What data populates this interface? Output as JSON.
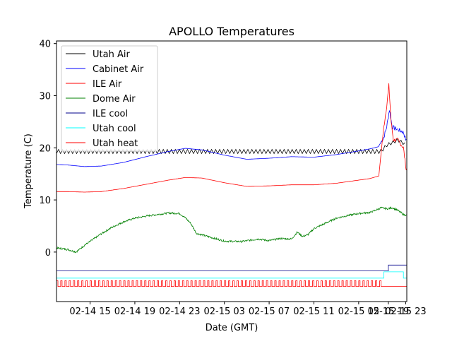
{
  "chart_data": {
    "type": "line",
    "title": "APOLLO Temperatures",
    "xlabel": "Date (GMT)",
    "ylabel": "Temperature (C)",
    "xlim": [
      0,
      62.6
    ],
    "ylim": [
      -9.5,
      40.5
    ],
    "xtick_values": [
      6,
      14,
      22,
      30,
      38,
      46,
      54,
      62
    ],
    "xtick_labels": [
      "02-14 15",
      "02-14 19",
      "02-14 23",
      "02-15 03",
      "02-15 07",
      "02-15 11",
      "02-15 15",
      "02-15 19",
      "02-15 23"
    ],
    "xtick_labels_note": "labels appear at hours 6,14,22,30,38,46,54 and two overlapping labels near the right end",
    "ytick_values": [
      0,
      10,
      20,
      30,
      40
    ],
    "ytick_labels": [
      "0",
      "10",
      "20",
      "30",
      "40"
    ],
    "legend_position": "top-left",
    "series": [
      {
        "name": "Utah Air",
        "color": "#000000",
        "style": "sawtooth",
        "x": [
          0,
          8,
          16,
          24,
          32,
          40,
          48,
          55,
          58,
          59,
          60,
          61,
          62.6
        ],
        "y": [
          19.3,
          19.3,
          19.3,
          19.3,
          19.3,
          19.3,
          19.3,
          19.3,
          19.3,
          20.5,
          21.0,
          21.5,
          20.5
        ],
        "amplitude": 0.8
      },
      {
        "name": "Cabinet Air",
        "color": "#0000ff",
        "style": "line",
        "x": [
          0,
          2,
          5,
          8,
          12,
          16,
          20,
          23,
          26,
          30,
          34,
          38,
          42,
          46,
          50,
          54,
          56,
          57.5,
          58.5,
          59,
          59.5,
          60,
          61,
          62,
          62.6
        ],
        "y": [
          16.8,
          16.7,
          16.4,
          16.5,
          17.2,
          18.3,
          19.3,
          19.9,
          19.6,
          18.6,
          17.8,
          18.0,
          18.3,
          18.2,
          18.7,
          19.4,
          19.8,
          20.2,
          22.0,
          24.0,
          27.3,
          24.0,
          23.5,
          23.0,
          21.0
        ]
      },
      {
        "name": "ILE Air",
        "color": "#ff0000",
        "style": "line",
        "x": [
          0,
          2,
          5,
          8,
          12,
          16,
          20,
          23,
          26,
          30,
          34,
          38,
          42,
          46,
          50,
          54,
          56,
          57.6,
          58,
          58.5,
          59,
          59.4,
          59.8,
          60.2,
          61,
          62,
          62.6
        ],
        "y": [
          11.6,
          11.6,
          11.5,
          11.6,
          12.2,
          13.0,
          13.8,
          14.3,
          14.2,
          13.3,
          12.6,
          12.7,
          12.9,
          12.9,
          13.2,
          13.8,
          14.1,
          14.6,
          19.0,
          24.0,
          28.0,
          32.0,
          25.0,
          21.5,
          21.5,
          20.0,
          15.0
        ]
      },
      {
        "name": "Dome Air",
        "color": "#008000",
        "style": "noisy",
        "x": [
          0,
          2,
          3.5,
          5,
          8,
          10,
          12,
          14,
          16,
          18,
          20,
          22,
          23,
          24,
          25,
          27,
          30,
          33,
          36,
          38,
          40,
          42,
          43,
          44,
          45,
          46,
          48,
          50,
          52,
          54,
          56,
          57,
          58,
          59,
          60,
          61,
          62,
          62.6
        ],
        "y": [
          0.8,
          0.5,
          0.0,
          1.3,
          3.5,
          4.8,
          5.8,
          6.5,
          6.9,
          7.2,
          7.5,
          7.4,
          6.6,
          5.5,
          3.6,
          3.0,
          2.1,
          2.0,
          2.5,
          2.2,
          2.6,
          2.5,
          3.8,
          3.0,
          3.4,
          4.5,
          5.5,
          6.5,
          7.0,
          7.4,
          7.6,
          8.0,
          8.5,
          8.3,
          8.5,
          8.0,
          7.2,
          7.0
        ]
      },
      {
        "name": "ILE cool",
        "color": "#00008b",
        "style": "step",
        "x": [
          0,
          59.3,
          59.3,
          62.6
        ],
        "y": [
          -3.6,
          -3.6,
          -2.5,
          -2.5
        ]
      },
      {
        "name": "Utah cool",
        "color": "#00ffff",
        "style": "step",
        "x": [
          0,
          58.5,
          58.5,
          62,
          62,
          62.6
        ],
        "y": [
          -5.0,
          -5.0,
          -3.8,
          -3.8,
          -5.0,
          -5.0
        ]
      },
      {
        "name": "Utah heat",
        "color": "#ff0000",
        "style": "pulses",
        "x": [
          0,
          58.2
        ],
        "base": -6.6,
        "high": -5.5,
        "period": 0.75,
        "flat_until": 62.6
      }
    ]
  }
}
